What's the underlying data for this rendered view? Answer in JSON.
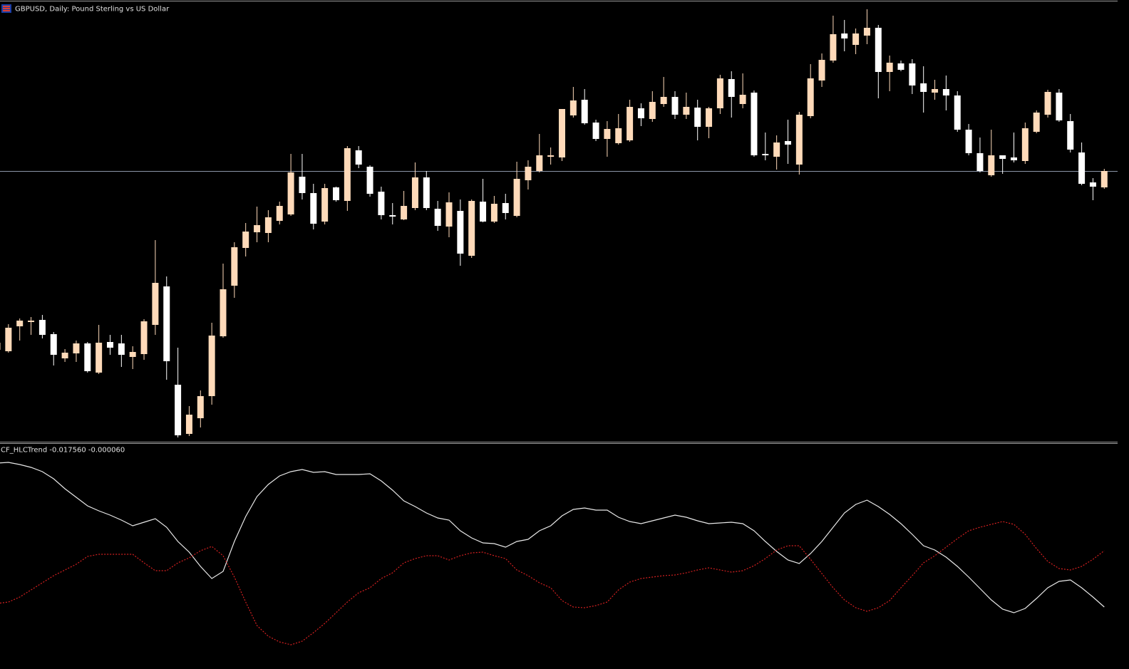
{
  "chart_data": [
    {
      "type": "candlestick",
      "title": "GBPUSD, Daily:  Pound Sterling vs US Dollar",
      "ylim": [
        0,
        620
      ],
      "up_color": "#ffdab9",
      "down_color": "#ffffff",
      "hline": 380,
      "hline_color": "#8c96a8",
      "open": [
        129,
        127,
        162,
        168,
        171,
        151,
        117,
        124,
        138,
        97,
        140,
        138,
        119,
        123,
        164,
        218,
        80,
        11,
        33,
        64,
        148,
        219,
        272,
        294,
        293,
        310,
        319,
        372,
        349,
        309,
        357,
        338,
        409,
        386,
        351,
        318,
        312,
        328,
        371,
        327,
        302,
        324,
        261,
        337,
        309,
        335,
        317,
        367,
        380,
        400,
        399,
        458,
        480,
        448,
        425,
        419,
        423,
        468,
        453,
        474,
        484,
        459,
        469,
        442,
        468,
        509,
        474,
        490,
        404,
        400,
        422,
        389,
        457,
        507,
        535,
        573,
        557,
        570,
        581,
        519,
        531,
        531,
        503,
        490,
        495,
        486,
        438,
        405,
        374,
        402,
        399,
        394,
        435,
        459,
        490,
        450,
        406,
        364,
        357
      ],
      "high": [
        142,
        165,
        173,
        175,
        178,
        154,
        130,
        142,
        140,
        164,
        150,
        150,
        134,
        172,
        283,
        232,
        132,
        50,
        72,
        167,
        250,
        280,
        307,
        330,
        325,
        337,
        404,
        404,
        362,
        362,
        358,
        415,
        415,
        388,
        358,
        335,
        352,
        392,
        380,
        338,
        350,
        340,
        340,
        369,
        345,
        348,
        393,
        395,
        432,
        413,
        467,
        498,
        495,
        452,
        450,
        460,
        480,
        475,
        492,
        512,
        492,
        490,
        480,
        470,
        515,
        520,
        517,
        493,
        434,
        430,
        452,
        463,
        530,
        545,
        598,
        592,
        580,
        607,
        585,
        542,
        535,
        537,
        527,
        508,
        514,
        492,
        446,
        427,
        438,
        402,
        434,
        448,
        465,
        494,
        495,
        460,
        420,
        370,
        383
      ],
      "low": [
        127,
        125,
        142,
        150,
        145,
        107,
        112,
        112,
        97,
        95,
        122,
        105,
        102,
        115,
        150,
        87,
        6,
        8,
        20,
        52,
        146,
        202,
        260,
        280,
        280,
        305,
        317,
        340,
        298,
        305,
        337,
        324,
        384,
        344,
        312,
        305,
        311,
        325,
        325,
        296,
        287,
        247,
        258,
        308,
        307,
        312,
        315,
        354,
        378,
        389,
        394,
        455,
        445,
        422,
        400,
        417,
        421,
        443,
        449,
        470,
        453,
        453,
        423,
        426,
        460,
        455,
        468,
        400,
        395,
        382,
        390,
        375,
        454,
        498,
        532,
        548,
        544,
        558,
        482,
        492,
        520,
        488,
        462,
        480,
        465,
        435,
        402,
        378,
        372,
        376,
        392,
        390,
        433,
        455,
        449,
        406,
        360,
        339,
        355
      ],
      "close": [
        139,
        160,
        170,
        170,
        150,
        122,
        125,
        138,
        99,
        139,
        132,
        122,
        126,
        169,
        223,
        113,
        9,
        38,
        64,
        149,
        214,
        273,
        295,
        304,
        315,
        331,
        378,
        349,
        306,
        356,
        339,
        412,
        389,
        348,
        318,
        316,
        331,
        371,
        328,
        303,
        336,
        264,
        338,
        309,
        334,
        321,
        369,
        386,
        402,
        402,
        467,
        479,
        447,
        425,
        439,
        440,
        470,
        454,
        477,
        484,
        459,
        470,
        442,
        468,
        510,
        484,
        487,
        402,
        402,
        420,
        417,
        459,
        510,
        536,
        572,
        566,
        573,
        581,
        519,
        532,
        522,
        500,
        491,
        495,
        486,
        438,
        405,
        380,
        402,
        397,
        395,
        440,
        462,
        491,
        451,
        410,
        362,
        358,
        380
      ]
    },
    {
      "type": "line",
      "title": "CF_HLCTrend -0.017560 -0.000060",
      "ylim": [
        0,
        305
      ],
      "series": [
        {
          "color": "#e8e8e8",
          "style": "solid",
          "values": [
            280,
            281,
            278,
            274,
            268,
            258,
            244,
            232,
            220,
            213,
            207,
            200,
            192,
            197,
            202,
            190,
            170,
            155,
            135,
            118,
            128,
            170,
            205,
            233,
            250,
            262,
            268,
            271,
            267,
            268,
            264,
            264,
            264,
            265,
            255,
            242,
            227,
            219,
            210,
            203,
            200,
            185,
            175,
            168,
            167,
            162,
            170,
            173,
            185,
            192,
            206,
            215,
            217,
            214,
            214,
            204,
            198,
            195,
            199,
            203,
            207,
            204,
            199,
            195,
            196,
            197,
            195,
            185,
            170,
            156,
            144,
            139,
            153,
            170,
            190,
            210,
            222,
            228,
            219,
            208,
            195,
            180,
            164,
            158,
            148,
            135,
            120,
            104,
            88,
            75,
            70,
            76,
            90,
            105,
            114,
            116,
            105,
            92,
            78
          ]
        },
        {
          "color": "#d42020",
          "style": "dotted",
          "values": [
            83,
            85,
            92,
            102,
            112,
            122,
            130,
            138,
            149,
            152,
            152,
            152,
            152,
            140,
            129,
            129,
            140,
            147,
            157,
            163,
            150,
            120,
            85,
            52,
            37,
            29,
            25,
            30,
            42,
            55,
            70,
            85,
            98,
            105,
            118,
            126,
            140,
            146,
            150,
            150,
            144,
            150,
            154,
            155,
            150,
            146,
            130,
            122,
            112,
            105,
            87,
            78,
            77,
            80,
            85,
            102,
            113,
            118,
            120,
            122,
            123,
            126,
            130,
            133,
            130,
            127,
            129,
            136,
            146,
            158,
            164,
            164,
            145,
            125,
            105,
            88,
            77,
            72,
            77,
            87,
            105,
            122,
            140,
            150,
            162,
            174,
            185,
            190,
            194,
            198,
            194,
            180,
            160,
            142,
            132,
            130,
            135,
            145,
            157
          ]
        }
      ]
    }
  ]
}
